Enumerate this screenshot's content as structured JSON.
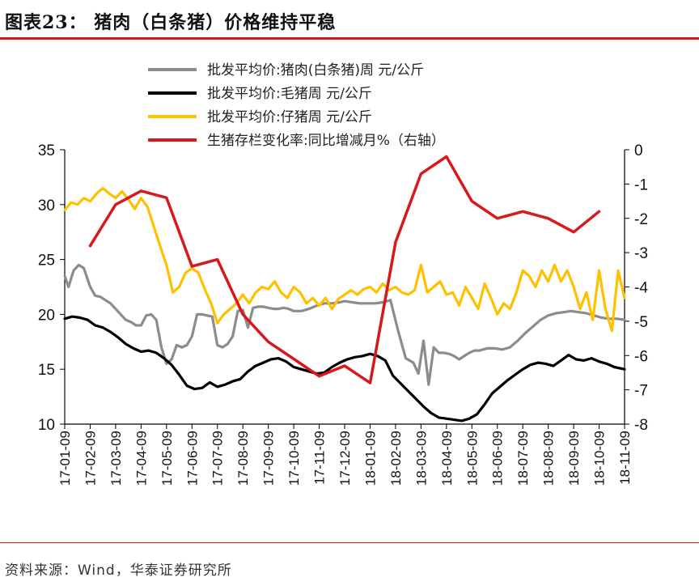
{
  "title": "图表23：  猪肉（白条猪）价格维持平稳",
  "source": "资料来源：Wind，华泰证券研究所",
  "colors": {
    "rule": "#c91f25",
    "series_pork": "#8c8c8c",
    "series_hog": "#000000",
    "series_piglet": "#ffc000",
    "series_inventory": "#d7191c"
  },
  "chart_data": {
    "type": "line",
    "x_tick_labels": [
      "17-01-09",
      "17-02-09",
      "17-03-09",
      "17-04-09",
      "17-05-09",
      "17-06-09",
      "17-07-09",
      "17-08-09",
      "17-09-09",
      "17-10-09",
      "17-11-09",
      "17-12-09",
      "18-01-09",
      "18-02-09",
      "18-03-09",
      "18-04-09",
      "18-05-09",
      "18-06-09",
      "18-07-09",
      "18-08-09",
      "18-09-09",
      "18-10-09",
      "18-11-09"
    ],
    "left_axis": {
      "min": 10,
      "max": 35,
      "ticks": [
        10,
        15,
        20,
        25,
        30,
        35
      ]
    },
    "right_axis": {
      "min": -8,
      "max": 0,
      "ticks": [
        0,
        -1,
        -2,
        -3,
        -4,
        -5,
        -6,
        -7,
        -8
      ]
    },
    "legend": [
      "批发平均价:猪肉(白条猪)周 元/公斤",
      "批发平均价:毛猪周 元/公斤",
      "批发平均价:仔猪周 元/公斤",
      "生猪存栏变化率:同比增减月%（右轴）"
    ],
    "series": [
      {
        "name": "批发平均价:猪肉(白条猪)周 元/公斤",
        "axis": "left",
        "x": [
          0,
          0.15,
          0.35,
          0.55,
          0.75,
          1.0,
          1.2,
          1.4,
          1.6,
          1.8,
          2.0,
          2.2,
          2.4,
          2.6,
          2.8,
          3.0,
          3.2,
          3.4,
          3.6,
          3.8,
          4.0,
          4.2,
          4.4,
          4.6,
          4.8,
          5.0,
          5.2,
          5.4,
          5.6,
          5.8,
          6.0,
          6.2,
          6.4,
          6.6,
          6.8,
          7.0,
          7.2,
          7.4,
          7.6,
          7.8,
          8.0,
          8.2,
          8.4,
          8.6,
          8.8,
          9.0,
          9.3,
          9.6,
          9.9,
          10.2,
          10.5,
          10.8,
          11.0,
          11.3,
          11.6,
          11.9,
          12.2,
          12.5,
          12.8,
          13.1,
          13.4,
          13.7,
          13.9,
          14.1,
          14.3,
          14.5,
          14.7,
          14.9,
          15.1,
          15.3,
          15.5,
          15.7,
          15.9,
          16.1,
          16.3,
          16.6,
          16.9,
          17.2,
          17.5,
          17.8,
          18.1,
          18.4,
          18.7,
          19.0,
          19.3,
          19.6,
          19.9,
          20.2,
          20.5,
          20.8,
          21.1,
          21.4,
          21.7,
          22.0
        ],
        "y": [
          23.5,
          22.5,
          24.0,
          24.5,
          24.2,
          22.5,
          21.7,
          21.6,
          21.3,
          21.0,
          20.5,
          20.0,
          19.5,
          19.3,
          19.0,
          19.0,
          19.9,
          20.0,
          19.5,
          17.0,
          15.5,
          15.9,
          17.2,
          17.0,
          17.2,
          18.0,
          20.0,
          20.0,
          19.9,
          19.8,
          17.2,
          17.0,
          17.3,
          18.0,
          20.3,
          20.4,
          18.8,
          20.6,
          20.7,
          20.7,
          20.6,
          20.5,
          20.5,
          20.6,
          20.5,
          20.3,
          20.3,
          20.5,
          20.8,
          21.0,
          21.0,
          21.1,
          21.2,
          21.1,
          21.0,
          21.0,
          21.0,
          21.1,
          21.3,
          18.5,
          16.0,
          15.6,
          14.6,
          17.6,
          13.6,
          17.0,
          16.5,
          16.5,
          16.4,
          16.2,
          15.9,
          16.2,
          16.5,
          16.7,
          16.7,
          16.9,
          16.9,
          16.8,
          17.0,
          17.6,
          18.3,
          18.9,
          19.5,
          19.9,
          20.1,
          20.2,
          20.3,
          20.2,
          20.1,
          19.9,
          19.7,
          19.6,
          19.6,
          19.5
        ]
      },
      {
        "name": "批发平均价:毛猪周 元/公斤",
        "axis": "left",
        "x": [
          0,
          0.3,
          0.6,
          0.9,
          1.2,
          1.5,
          1.8,
          2.1,
          2.4,
          2.7,
          3.0,
          3.3,
          3.6,
          3.9,
          4.2,
          4.5,
          4.8,
          5.1,
          5.4,
          5.7,
          6.0,
          6.3,
          6.6,
          6.9,
          7.2,
          7.5,
          7.8,
          8.1,
          8.4,
          8.7,
          9.0,
          9.3,
          9.6,
          9.9,
          10.2,
          10.5,
          10.8,
          11.1,
          11.4,
          11.7,
          12.0,
          12.3,
          12.6,
          12.9,
          13.2,
          13.5,
          13.8,
          14.1,
          14.4,
          14.7,
          15.0,
          15.3,
          15.6,
          15.9,
          16.2,
          16.5,
          16.8,
          17.1,
          17.4,
          17.7,
          18.0,
          18.3,
          18.6,
          18.9,
          19.2,
          19.5,
          19.8,
          20.1,
          20.4,
          20.7,
          21.0,
          21.3,
          21.6,
          22.0
        ],
        "y": [
          19.6,
          19.8,
          19.7,
          19.5,
          19.0,
          18.8,
          18.4,
          17.9,
          17.3,
          16.9,
          16.6,
          16.7,
          16.5,
          16.0,
          15.4,
          14.5,
          13.5,
          13.2,
          13.3,
          13.8,
          13.4,
          13.6,
          13.9,
          14.1,
          14.8,
          15.3,
          15.6,
          15.9,
          16.0,
          15.7,
          15.2,
          15.0,
          14.8,
          14.6,
          14.7,
          15.2,
          15.6,
          15.9,
          16.1,
          16.2,
          16.4,
          16.2,
          15.8,
          14.4,
          13.7,
          13.0,
          12.3,
          11.6,
          11.0,
          10.6,
          10.5,
          10.4,
          10.3,
          10.5,
          10.9,
          11.8,
          12.8,
          13.4,
          14.0,
          14.5,
          15.0,
          15.4,
          15.6,
          15.5,
          15.3,
          15.8,
          16.3,
          15.9,
          15.8,
          16.0,
          15.7,
          15.5,
          15.2,
          15.0
        ]
      },
      {
        "name": "批发平均价:仔猪周 元/公斤",
        "axis": "left",
        "x": [
          0,
          0.25,
          0.5,
          0.75,
          1.0,
          1.25,
          1.5,
          1.75,
          2.0,
          2.25,
          2.5,
          2.75,
          3.0,
          3.25,
          3.5,
          3.75,
          4.0,
          4.25,
          4.5,
          4.75,
          5.0,
          5.25,
          5.5,
          5.75,
          6.0,
          6.25,
          6.5,
          6.75,
          7.0,
          7.25,
          7.5,
          7.75,
          8.0,
          8.25,
          8.5,
          8.75,
          9.0,
          9.25,
          9.5,
          9.75,
          10.0,
          10.25,
          10.5,
          10.75,
          11.0,
          11.25,
          11.5,
          11.75,
          12.0,
          12.25,
          12.5,
          12.75,
          13.0,
          13.25,
          13.5,
          13.75,
          14.0,
          14.25,
          14.5,
          14.75,
          15.0,
          15.25,
          15.5,
          15.75,
          16.0,
          16.25,
          16.5,
          16.75,
          17.0,
          17.25,
          17.5,
          17.75,
          18.0,
          18.25,
          18.5,
          18.75,
          19.0,
          19.25,
          19.5,
          19.75,
          20.0,
          20.25,
          20.5,
          20.75,
          21.0,
          21.25,
          21.5,
          21.75,
          22.0
        ],
        "y": [
          29.5,
          30.2,
          30.0,
          30.6,
          30.3,
          31.0,
          31.5,
          31.0,
          30.6,
          31.2,
          30.5,
          29.6,
          30.6,
          29.8,
          28.0,
          26.2,
          24.5,
          22.0,
          22.5,
          23.8,
          24.2,
          23.8,
          22.3,
          21.0,
          19.2,
          20.0,
          20.5,
          21.0,
          21.8,
          21.0,
          22.0,
          22.5,
          22.3,
          23.0,
          22.0,
          21.5,
          22.5,
          22.0,
          21.0,
          21.5,
          20.8,
          21.5,
          20.5,
          21.4,
          21.8,
          22.2,
          21.8,
          22.3,
          22.5,
          22.0,
          22.8,
          22.2,
          22.5,
          22.0,
          21.8,
          22.2,
          24.5,
          22.0,
          22.5,
          23.0,
          21.8,
          22.0,
          20.8,
          22.5,
          21.5,
          20.5,
          22.8,
          21.5,
          20.0,
          21.0,
          20.5,
          22.0,
          24.0,
          23.5,
          22.5,
          24.0,
          23.0,
          24.5,
          23.0,
          24.0,
          22.5,
          20.5,
          22.0,
          19.5,
          24.0,
          20.5,
          18.5,
          24.0,
          21.5
        ]
      },
      {
        "name": "生猪存栏变化率:同比增减月%（右轴）",
        "axis": "right",
        "x": [
          1,
          2,
          3,
          4,
          5,
          6,
          7,
          8,
          9,
          10,
          11,
          12,
          13,
          14,
          15,
          16,
          17,
          18,
          19,
          20,
          21
        ],
        "y": [
          -2.8,
          -1.6,
          -1.2,
          -1.4,
          -3.4,
          -3.2,
          -4.8,
          -5.6,
          -6.1,
          -6.6,
          -6.3,
          -6.8,
          -2.7,
          -0.7,
          -0.2,
          -1.5,
          -2.0,
          -1.8,
          -2.0,
          -2.4,
          -1.8
        ]
      }
    ]
  }
}
